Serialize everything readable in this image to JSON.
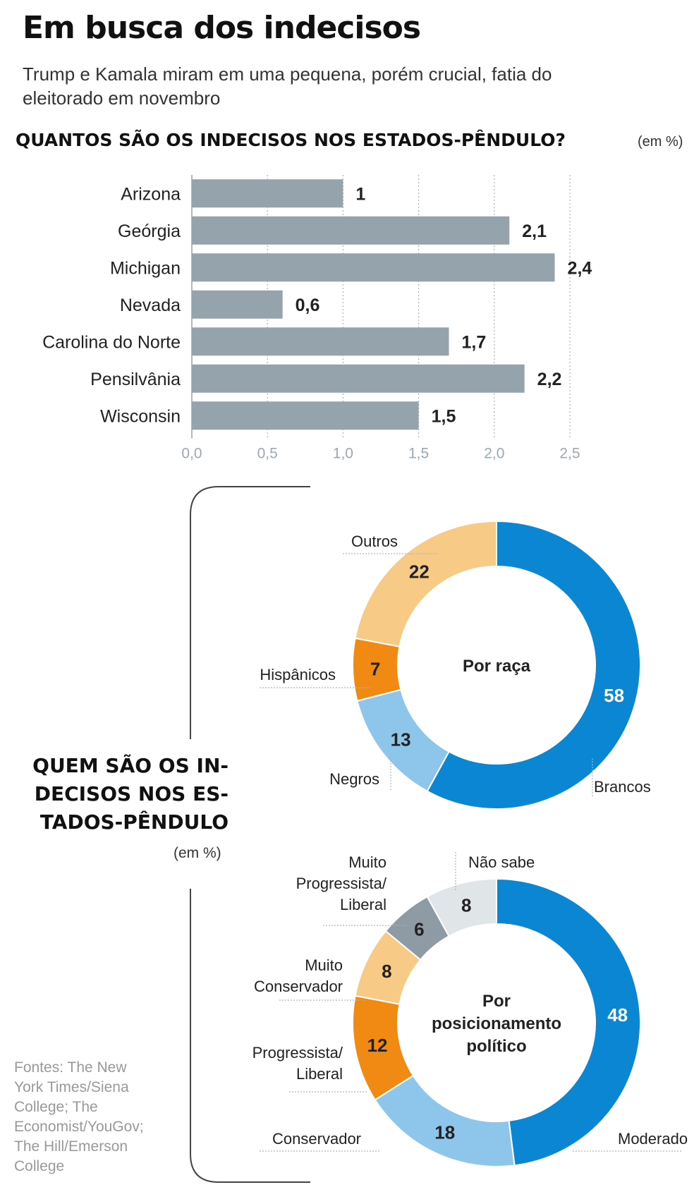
{
  "title": "Em busca dos indecisos",
  "subtitle": "Trump e Kamala miram em uma pequena, porém crucial, fatia do eleitorado em novembro",
  "bar_section": {
    "title": "QUANTOS SÃO OS INDECISOS NOS ESTADOS-PÊNDULO?",
    "unit": "(em %)"
  },
  "donut_section": {
    "title": "QUEM SÃO OS IN-DECISOS NOS ES-TADOS-PÊNDULO",
    "unit": "(em %)"
  },
  "sources": "Fontes: The New York Times/Siena College; The Economist/YouGov; The Hill/Emerson College",
  "colors": {
    "bar": "#95a3ad",
    "dark_blue": "#0a86d2",
    "light_blue": "#8dc6ea",
    "orange": "#f08a12",
    "light_orange": "#f7ca85",
    "gray_dark": "#8f9ba4",
    "gray_light": "#e0e5e8"
  },
  "chart_data": [
    {
      "type": "bar",
      "orientation": "horizontal",
      "categories": [
        "Arizona",
        "Geórgia",
        "Michigan",
        "Nevada",
        "Carolina do Norte",
        "Pensilvânia",
        "Wisconsin"
      ],
      "values": [
        1,
        2.1,
        2.4,
        0.6,
        1.7,
        2.2,
        1.5
      ],
      "value_labels": [
        "1",
        "2,1",
        "2,4",
        "0,6",
        "1,7",
        "2,2",
        "1,5"
      ],
      "xlim": [
        0,
        2.5
      ],
      "xticks": [
        0,
        0.5,
        1.0,
        1.5,
        2.0,
        2.5
      ],
      "xtick_labels": [
        "0,0",
        "0,5",
        "1,0",
        "1,5",
        "2,0",
        "2,5"
      ],
      "grid": "vertical dotted"
    },
    {
      "type": "pie",
      "donut": true,
      "center_label": "Por raça",
      "slices": [
        {
          "label": "Brancos",
          "value": 58,
          "color": "#0a86d2",
          "value_color": "#ffffff"
        },
        {
          "label": "Negros",
          "value": 13,
          "color": "#8dc6ea",
          "value_color": "#222222"
        },
        {
          "label": "Hispânicos",
          "value": 7,
          "color": "#f08a12",
          "value_color": "#222222"
        },
        {
          "label": "Outros",
          "value": 22,
          "color": "#f7ca85",
          "value_color": "#222222"
        }
      ]
    },
    {
      "type": "pie",
      "donut": true,
      "center_label": "Por posicionamento político",
      "slices": [
        {
          "label": "Moderado",
          "value": 48,
          "color": "#0a86d2",
          "value_color": "#ffffff"
        },
        {
          "label": "Conservador",
          "value": 18,
          "color": "#8dc6ea",
          "value_color": "#222222"
        },
        {
          "label": "Progressista/ Liberal",
          "value": 12,
          "color": "#f08a12",
          "value_color": "#222222"
        },
        {
          "label": "Muito Conservador",
          "value": 8,
          "color": "#f7ca85",
          "value_color": "#222222"
        },
        {
          "label": "Muito Progressista/ Liberal",
          "value": 6,
          "color": "#8f9ba4",
          "value_color": "#222222"
        },
        {
          "label": "Não sabe",
          "value": 8,
          "color": "#e0e5e8",
          "value_color": "#222222"
        }
      ]
    }
  ]
}
